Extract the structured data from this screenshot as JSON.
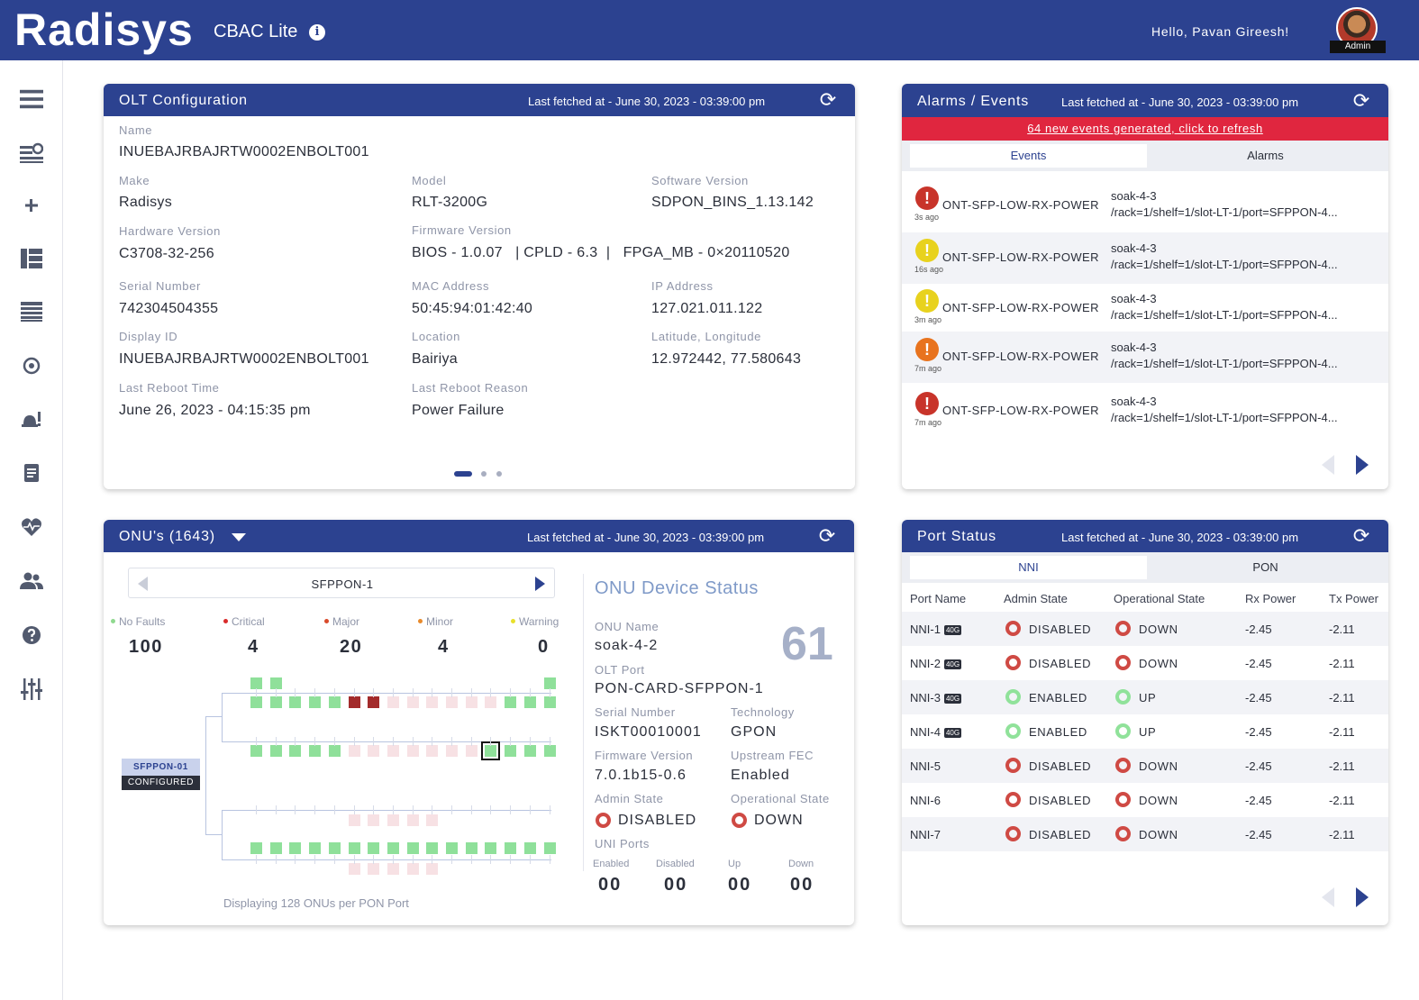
{
  "header": {
    "logo": "Radisys",
    "app_name": "CBAC Lite",
    "greeting": "Hello, Pavan Gireesh!",
    "role": "Admin"
  },
  "sidebar": {
    "icons": [
      "menu-icon",
      "list-settings-icon",
      "plus-icon",
      "dashboard-icon",
      "table-icon",
      "network-icon",
      "alarm-icon",
      "report-icon",
      "health-icon",
      "users-icon",
      "help-icon",
      "sliders-icon"
    ]
  },
  "olt": {
    "title": "OLT Configuration",
    "fetched": "Last fetched at - June 30, 2023 - 03:39:00 pm",
    "fields": {
      "name": {
        "label": "Name",
        "value": "INUEBAJRBAJRTW0002ENBOLT001"
      },
      "make": {
        "label": "Make",
        "value": "Radisys"
      },
      "model": {
        "label": "Model",
        "value": "RLT-3200G"
      },
      "software": {
        "label": "Software Version",
        "value": "SDPON_BINS_1.13.142"
      },
      "hardware": {
        "label": "Hardware Version",
        "value": "C3708-32-256"
      },
      "firmware": {
        "label": "Firmware Version",
        "value": "BIOS - 1.0.07   | CPLD - 6.3  |   FPGA_MB - 0×20110520"
      },
      "serial": {
        "label": "Serial Number",
        "value": "742304504355"
      },
      "mac": {
        "label": "MAC Address",
        "value": "50:45:94:01:42:40"
      },
      "ip": {
        "label": "IP Address",
        "value": "127.021.011.122"
      },
      "display_id": {
        "label": "Display ID",
        "value": "INUEBAJRBAJRTW0002ENBOLT001"
      },
      "location": {
        "label": "Location",
        "value": "Bairiya"
      },
      "latlong": {
        "label": "Latitude, Longitude",
        "value": "12.972442, 77.580643"
      },
      "reboot_time": {
        "label": "Last Reboot Time",
        "value": "June 26, 2023 - 04:15:35 pm"
      },
      "reboot_reason": {
        "label": "Last Reboot Reason",
        "value": "Power Failure"
      }
    }
  },
  "alarms": {
    "title": "Alarms / Events",
    "fetched": "Last fetched at - June 30, 2023 - 03:39:00 pm",
    "banner": "64 new events generated, click to refresh",
    "tabs": [
      "Events",
      "Alarms"
    ],
    "events": [
      {
        "severity": "critical",
        "color": "#c8342a",
        "ago": "3s ago",
        "name": "ONT-SFP-LOW-RX-POWER",
        "source": "soak-4-3",
        "path": "/rack=1/shelf=1/slot-LT-1/port=SFPPON-4..."
      },
      {
        "severity": "warning",
        "color": "#e8d21e",
        "ago": "16s ago",
        "name": "ONT-SFP-LOW-RX-POWER",
        "source": "soak-4-3",
        "path": "/rack=1/shelf=1/slot-LT-1/port=SFPPON-4..."
      },
      {
        "severity": "warning",
        "color": "#e8d21e",
        "ago": "3m ago",
        "name": "ONT-SFP-LOW-RX-POWER",
        "source": "soak-4-3",
        "path": "/rack=1/shelf=1/slot-LT-1/port=SFPPON-4..."
      },
      {
        "severity": "minor",
        "color": "#e8731e",
        "ago": "7m ago",
        "name": "ONT-SFP-LOW-RX-POWER",
        "source": "soak-4-3",
        "path": "/rack=1/shelf=1/slot-LT-1/port=SFPPON-4..."
      },
      {
        "severity": "critical",
        "color": "#c8342a",
        "ago": "7m ago",
        "name": "ONT-SFP-LOW-RX-POWER",
        "source": "soak-4-3",
        "path": "/rack=1/shelf=1/slot-LT-1/port=SFPPON-4..."
      }
    ]
  },
  "ports": {
    "title": "Port Status",
    "fetched": "Last fetched at - June 30, 2023 - 03:39:00 pm",
    "tabs": [
      "NNI",
      "PON"
    ],
    "columns": [
      "Port Name",
      "Admin State",
      "Operational State",
      "Rx Power",
      "Tx Power"
    ],
    "rows": [
      {
        "name": "NNI-1",
        "badge": "40G",
        "admin": "DISABLED",
        "oper": "DOWN",
        "rx": "-2.45",
        "tx": "-2.11"
      },
      {
        "name": "NNI-2",
        "badge": "40G",
        "admin": "DISABLED",
        "oper": "DOWN",
        "rx": "-2.45",
        "tx": "-2.11"
      },
      {
        "name": "NNI-3",
        "badge": "40G",
        "admin": "ENABLED",
        "oper": "UP",
        "rx": "-2.45",
        "tx": "-2.11"
      },
      {
        "name": "NNI-4",
        "badge": "40G",
        "admin": "ENABLED",
        "oper": "UP",
        "rx": "-2.45",
        "tx": "-2.11"
      },
      {
        "name": "NNI-5",
        "badge": "",
        "admin": "DISABLED",
        "oper": "DOWN",
        "rx": "-2.45",
        "tx": "-2.11"
      },
      {
        "name": "NNI-6",
        "badge": "",
        "admin": "DISABLED",
        "oper": "DOWN",
        "rx": "-2.45",
        "tx": "-2.11"
      },
      {
        "name": "NNI-7",
        "badge": "",
        "admin": "DISABLED",
        "oper": "DOWN",
        "rx": "-2.45",
        "tx": "-2.11"
      }
    ]
  },
  "onus": {
    "title": "ONU's (1643)",
    "fetched": "Last fetched at - June 30, 2023 - 03:39:00 pm",
    "pon_port": "SFPPON-1",
    "faults": [
      {
        "label": "No Faults",
        "count": "100",
        "color": "#8fd98f"
      },
      {
        "label": "Critical",
        "count": "4",
        "color": "#d92b2b"
      },
      {
        "label": "Major",
        "count": "20",
        "color": "#d94a2b"
      },
      {
        "label": "Minor",
        "count": "4",
        "color": "#e88a2b"
      },
      {
        "label": "Warning",
        "count": "0",
        "color": "#e8e02b"
      }
    ],
    "pon_tag": "SFPPON-01",
    "pon_tag_status": "CONFIGURED",
    "footer": "Displaying 128 ONUs per PON Port",
    "device_status": {
      "title": "ONU Device Status",
      "number": "61",
      "onu_name": {
        "label": "ONU Name",
        "value": "soak-4-2"
      },
      "olt_port": {
        "label": "OLT Port",
        "value": "PON-CARD-SFPPON-1"
      },
      "serial": {
        "label": "Serial Number",
        "value": "ISKT00010001"
      },
      "technology": {
        "label": "Technology",
        "value": "GPON"
      },
      "firmware": {
        "label": "Firmware Version",
        "value": "7.0.1b15-0.6"
      },
      "fec": {
        "label": "Upstream FEC",
        "value": "Enabled"
      },
      "admin_state": {
        "label": "Admin State",
        "value": "DISABLED"
      },
      "oper_state": {
        "label": "Operational State",
        "value": "DOWN"
      },
      "uni_ports": {
        "label": "UNI Ports",
        "items": [
          {
            "label": "Enabled",
            "value": "00"
          },
          {
            "label": "Disabled",
            "value": "00"
          },
          {
            "label": "Up",
            "value": "00"
          },
          {
            "label": "Down",
            "value": "00"
          }
        ]
      }
    }
  }
}
